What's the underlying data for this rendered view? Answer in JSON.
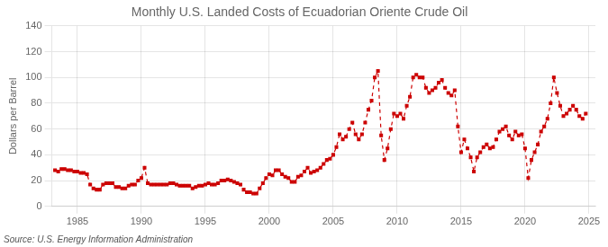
{
  "chart_data": {
    "type": "line",
    "title": "Monthly U.S. Landed Costs of Ecuadorian Oriente Crude Oil",
    "ylabel": "Dollars per Barrel",
    "source": "Source: U.S. Energy Information Administration",
    "xlim": [
      1983.0,
      2025.5
    ],
    "ylim": [
      0,
      140
    ],
    "xticks": [
      1985,
      1990,
      1995,
      2000,
      2005,
      2010,
      2015,
      2020,
      2025
    ],
    "yticks": [
      0,
      20,
      40,
      60,
      80,
      100,
      120,
      140
    ],
    "grid": true,
    "color": "#cc0000",
    "marker": "square",
    "line_style": "dashed",
    "x": [
      1983.25,
      1983.5,
      1983.75,
      1984.0,
      1984.25,
      1984.5,
      1984.75,
      1985.0,
      1985.25,
      1985.5,
      1985.75,
      1986.0,
      1986.25,
      1986.5,
      1986.75,
      1987.0,
      1987.25,
      1987.5,
      1987.75,
      1988.0,
      1988.25,
      1988.5,
      1988.75,
      1989.0,
      1989.25,
      1989.5,
      1989.75,
      1990.0,
      1990.25,
      1990.5,
      1990.75,
      1991.0,
      1991.25,
      1991.5,
      1991.75,
      1992.0,
      1992.25,
      1992.5,
      1992.75,
      1993.0,
      1993.25,
      1993.5,
      1993.75,
      1994.0,
      1994.25,
      1994.5,
      1994.75,
      1995.0,
      1995.25,
      1995.5,
      1995.75,
      1996.0,
      1996.25,
      1996.5,
      1996.75,
      1997.0,
      1997.25,
      1997.5,
      1997.75,
      1998.0,
      1998.25,
      1998.5,
      1998.75,
      1999.0,
      1999.25,
      1999.5,
      1999.75,
      2000.0,
      2000.25,
      2000.5,
      2000.75,
      2001.0,
      2001.25,
      2001.5,
      2001.75,
      2002.0,
      2002.25,
      2002.5,
      2002.75,
      2003.0,
      2003.25,
      2003.5,
      2003.75,
      2004.0,
      2004.25,
      2004.5,
      2004.75,
      2005.0,
      2005.25,
      2005.5,
      2005.75,
      2006.0,
      2006.25,
      2006.5,
      2006.75,
      2007.0,
      2007.25,
      2007.5,
      2007.75,
      2008.0,
      2008.25,
      2008.5,
      2008.75,
      2009.0,
      2009.25,
      2009.5,
      2009.75,
      2010.0,
      2010.25,
      2010.5,
      2010.75,
      2011.0,
      2011.25,
      2011.5,
      2011.75,
      2012.0,
      2012.25,
      2012.5,
      2012.75,
      2013.0,
      2013.25,
      2013.5,
      2013.75,
      2014.0,
      2014.25,
      2014.5,
      2014.75,
      2015.0,
      2015.25,
      2015.5,
      2015.75,
      2016.0,
      2016.25,
      2016.5,
      2016.75,
      2017.0,
      2017.25,
      2017.5,
      2017.75,
      2018.0,
      2018.25,
      2018.5,
      2018.75,
      2019.0,
      2019.25,
      2019.5,
      2019.75,
      2020.0,
      2020.25,
      2020.5,
      2020.75,
      2021.0,
      2021.25,
      2021.5,
      2021.75,
      2022.0,
      2022.25,
      2022.5,
      2022.75,
      2023.0,
      2023.25,
      2023.5,
      2023.75,
      2024.0,
      2024.25,
      2024.5,
      2024.75
    ],
    "values": [
      28,
      27,
      29,
      29,
      28,
      28,
      27,
      27,
      26,
      26,
      25,
      17,
      14,
      13,
      13,
      17,
      18,
      18,
      18,
      15,
      15,
      14,
      14,
      16,
      17,
      17,
      20,
      22,
      30,
      18,
      17,
      17,
      17,
      17,
      17,
      17,
      18,
      18,
      17,
      16,
      16,
      16,
      16,
      14,
      15,
      16,
      16,
      17,
      18,
      17,
      17,
      18,
      20,
      20,
      21,
      20,
      19,
      18,
      17,
      13,
      11,
      11,
      10,
      10,
      14,
      18,
      22,
      25,
      24,
      28,
      28,
      25,
      23,
      22,
      19,
      19,
      23,
      24,
      27,
      30,
      26,
      27,
      28,
      30,
      33,
      36,
      37,
      40,
      46,
      56,
      52,
      54,
      60,
      65,
      56,
      52,
      56,
      65,
      75,
      82,
      100,
      105,
      55,
      36,
      45,
      60,
      72,
      70,
      72,
      68,
      78,
      85,
      100,
      102,
      100,
      100,
      92,
      88,
      90,
      92,
      96,
      98,
      92,
      88,
      86,
      90,
      62,
      42,
      52,
      45,
      38,
      27,
      38,
      42,
      46,
      48,
      45,
      46,
      52,
      58,
      60,
      62,
      55,
      52,
      58,
      55,
      56,
      45,
      22,
      36,
      42,
      48,
      58,
      62,
      68,
      80,
      100,
      88,
      78,
      70,
      72,
      75,
      78,
      75,
      70,
      68,
      72
    ]
  }
}
